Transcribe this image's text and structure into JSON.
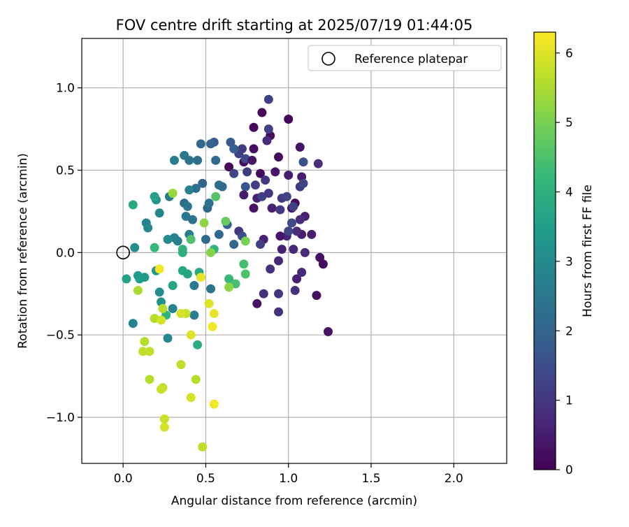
{
  "chart_data": {
    "type": "scatter",
    "title": "FOV centre drift starting at 2025/07/19 01:44:05",
    "xlabel": "Angular distance from reference (arcmin)",
    "ylabel": "Rotation from reference (arcmin)",
    "xlim": [
      -0.25,
      2.32
    ],
    "ylim": [
      -1.28,
      1.3
    ],
    "xticks": [
      0.0,
      0.5,
      1.0,
      1.5,
      2.0
    ],
    "xtick_labels": [
      "0.0",
      "0.5",
      "1.0",
      "1.5",
      "2.0"
    ],
    "yticks": [
      -1.0,
      -0.5,
      0.0,
      0.5,
      1.0
    ],
    "ytick_labels": [
      "−1.0",
      "−0.5",
      "0.0",
      "0.5",
      "1.0"
    ],
    "grid": true,
    "legend": {
      "placement": "upper right",
      "entries": [
        {
          "label": "Reference platepar",
          "marker": "open-circle"
        }
      ]
    },
    "reference_point": {
      "x": 0.0,
      "y": 0.0
    },
    "colorbar": {
      "label": "Hours from first FF file",
      "colormap": "viridis",
      "range": [
        0,
        6.3
      ],
      "ticks": [
        0,
        1,
        2,
        3,
        4,
        5,
        6
      ],
      "tick_labels": [
        "0",
        "1",
        "2",
        "3",
        "4",
        "5",
        "6"
      ]
    },
    "colormap_stops": [
      "#440154",
      "#482878",
      "#3e4a89",
      "#31688e",
      "#26828e",
      "#1f9e89",
      "#35b779",
      "#6ece58",
      "#b5de2b",
      "#fde725"
    ],
    "points": [
      {
        "x": 1.0,
        "y": 0.81,
        "t": 0.05
      },
      {
        "x": 0.84,
        "y": 0.85,
        "t": 0.1
      },
      {
        "x": 0.79,
        "y": 0.76,
        "t": 0.15
      },
      {
        "x": 0.89,
        "y": 0.71,
        "t": 0.2
      },
      {
        "x": 0.94,
        "y": 0.58,
        "t": 0.2
      },
      {
        "x": 1.07,
        "y": 0.64,
        "t": 0.3
      },
      {
        "x": 0.79,
        "y": 0.63,
        "t": 0.25
      },
      {
        "x": 0.64,
        "y": 0.52,
        "t": 0.1
      },
      {
        "x": 0.73,
        "y": 0.55,
        "t": 0.2
      },
      {
        "x": 0.83,
        "y": 0.48,
        "t": 0.2
      },
      {
        "x": 0.92,
        "y": 0.49,
        "t": 0.4
      },
      {
        "x": 1.0,
        "y": 0.47,
        "t": 0.5
      },
      {
        "x": 1.08,
        "y": 0.46,
        "t": 0.5
      },
      {
        "x": 0.81,
        "y": 0.33,
        "t": 0.6
      },
      {
        "x": 0.79,
        "y": 0.27,
        "t": 0.3
      },
      {
        "x": 0.9,
        "y": 0.27,
        "t": 0.6
      },
      {
        "x": 1.02,
        "y": 0.27,
        "t": 0.4
      },
      {
        "x": 1.04,
        "y": 0.3,
        "t": 0.1
      },
      {
        "x": 1.1,
        "y": 0.22,
        "t": 0.6
      },
      {
        "x": 1.07,
        "y": 0.2,
        "t": 0.8
      },
      {
        "x": 0.99,
        "y": 0.1,
        "t": 0.7
      },
      {
        "x": 0.95,
        "y": 0.1,
        "t": 0.4
      },
      {
        "x": 1.08,
        "y": 0.11,
        "t": 0.5
      },
      {
        "x": 1.14,
        "y": 0.11,
        "t": 0.5
      },
      {
        "x": 0.96,
        "y": 0.02,
        "t": 0.6
      },
      {
        "x": 1.03,
        "y": 0.02,
        "t": 0.7
      },
      {
        "x": 1.1,
        "y": 0.0,
        "t": 0.8
      },
      {
        "x": 0.94,
        "y": -0.05,
        "t": 0.7
      },
      {
        "x": 0.89,
        "y": -0.1,
        "t": 0.9
      },
      {
        "x": 1.05,
        "y": -0.16,
        "t": 0.6
      },
      {
        "x": 1.08,
        "y": -0.12,
        "t": 0.7
      },
      {
        "x": 1.19,
        "y": -0.03,
        "t": 0.3
      },
      {
        "x": 1.21,
        "y": -0.07,
        "t": 0.2
      },
      {
        "x": 1.17,
        "y": -0.26,
        "t": 0.3
      },
      {
        "x": 1.04,
        "y": -0.23,
        "t": 0.9
      },
      {
        "x": 0.85,
        "y": -0.25,
        "t": 0.9
      },
      {
        "x": 0.81,
        "y": -0.31,
        "t": 0.3
      },
      {
        "x": 0.94,
        "y": -0.25,
        "t": 1.0
      },
      {
        "x": 0.94,
        "y": -0.36,
        "t": 0.9
      },
      {
        "x": 1.24,
        "y": -0.48,
        "t": 0.3
      },
      {
        "x": 0.88,
        "y": 0.93,
        "t": 1.2
      },
      {
        "x": 0.88,
        "y": 0.75,
        "t": 1.2
      },
      {
        "x": 0.87,
        "y": 0.68,
        "t": 0.8
      },
      {
        "x": 0.72,
        "y": 0.63,
        "t": 1.1
      },
      {
        "x": 0.7,
        "y": 0.6,
        "t": 1.2
      },
      {
        "x": 0.74,
        "y": 0.57,
        "t": 1.4
      },
      {
        "x": 0.78,
        "y": 0.56,
        "t": 0.4
      },
      {
        "x": 0.75,
        "y": 0.49,
        "t": 1.1
      },
      {
        "x": 0.67,
        "y": 0.48,
        "t": 1.3
      },
      {
        "x": 0.86,
        "y": 0.44,
        "t": 1.0
      },
      {
        "x": 0.8,
        "y": 0.41,
        "t": 1.2
      },
      {
        "x": 0.74,
        "y": 0.4,
        "t": 1.7
      },
      {
        "x": 0.84,
        "y": 0.34,
        "t": 1.2
      },
      {
        "x": 0.88,
        "y": 0.36,
        "t": 1.0
      },
      {
        "x": 0.96,
        "y": 0.33,
        "t": 1.1
      },
      {
        "x": 0.99,
        "y": 0.34,
        "t": 1.3
      },
      {
        "x": 1.07,
        "y": 0.4,
        "t": 1.1
      },
      {
        "x": 1.09,
        "y": 0.42,
        "t": 1.3
      },
      {
        "x": 1.09,
        "y": 0.55,
        "t": 1.6
      },
      {
        "x": 1.18,
        "y": 0.54,
        "t": 0.8
      },
      {
        "x": 0.95,
        "y": 0.26,
        "t": 1.1
      },
      {
        "x": 1.03,
        "y": 0.28,
        "t": 1.2
      },
      {
        "x": 1.02,
        "y": 0.18,
        "t": 1.4
      },
      {
        "x": 1.05,
        "y": 0.13,
        "t": 0.8
      },
      {
        "x": 1.0,
        "y": 0.13,
        "t": 1.3
      },
      {
        "x": 0.7,
        "y": 0.13,
        "t": 1.0
      },
      {
        "x": 0.72,
        "y": 0.1,
        "t": 1.5
      },
      {
        "x": 0.85,
        "y": 0.08,
        "t": 0.6
      },
      {
        "x": 0.83,
        "y": 0.05,
        "t": 1.2
      },
      {
        "x": 0.73,
        "y": 0.35,
        "t": 0.5
      },
      {
        "x": 0.55,
        "y": 0.67,
        "t": 1.9
      },
      {
        "x": 0.47,
        "y": 0.66,
        "t": 2.1
      },
      {
        "x": 0.53,
        "y": 0.66,
        "t": 2.0
      },
      {
        "x": 0.65,
        "y": 0.67,
        "t": 1.8
      },
      {
        "x": 0.67,
        "y": 0.63,
        "t": 1.9
      },
      {
        "x": 0.56,
        "y": 0.56,
        "t": 2.2
      },
      {
        "x": 0.37,
        "y": 0.59,
        "t": 2.5
      },
      {
        "x": 0.4,
        "y": 0.56,
        "t": 2.4
      },
      {
        "x": 0.45,
        "y": 0.56,
        "t": 2.3
      },
      {
        "x": 0.31,
        "y": 0.56,
        "t": 2.7
      },
      {
        "x": 0.48,
        "y": 0.42,
        "t": 2.0
      },
      {
        "x": 0.44,
        "y": 0.39,
        "t": 2.3
      },
      {
        "x": 0.4,
        "y": 0.38,
        "t": 2.8
      },
      {
        "x": 0.37,
        "y": 0.3,
        "t": 2.2
      },
      {
        "x": 0.39,
        "y": 0.28,
        "t": 2.5
      },
      {
        "x": 0.51,
        "y": 0.27,
        "t": 2.1
      },
      {
        "x": 0.52,
        "y": 0.3,
        "t": 2.4
      },
      {
        "x": 0.58,
        "y": 0.41,
        "t": 2.3
      },
      {
        "x": 0.6,
        "y": 0.4,
        "t": 2.2
      },
      {
        "x": 0.38,
        "y": 0.22,
        "t": 2.5
      },
      {
        "x": 0.42,
        "y": 0.2,
        "t": 2.4
      },
      {
        "x": 0.5,
        "y": 0.08,
        "t": 2.2
      },
      {
        "x": 0.58,
        "y": 0.11,
        "t": 2.1
      },
      {
        "x": 0.63,
        "y": 0.17,
        "t": 2.0
      },
      {
        "x": 0.67,
        "y": 0.05,
        "t": 2.1
      },
      {
        "x": 0.4,
        "y": 0.11,
        "t": 2.6
      },
      {
        "x": 0.31,
        "y": 0.09,
        "t": 2.8
      },
      {
        "x": 0.33,
        "y": 0.07,
        "t": 2.7
      },
      {
        "x": 0.28,
        "y": 0.34,
        "t": 2.6
      },
      {
        "x": 0.22,
        "y": 0.24,
        "t": 2.9
      },
      {
        "x": 0.14,
        "y": 0.18,
        "t": 2.8
      },
      {
        "x": 0.15,
        "y": 0.15,
        "t": 2.9
      },
      {
        "x": 0.2,
        "y": 0.32,
        "t": 3.2
      },
      {
        "x": 0.27,
        "y": 0.08,
        "t": 3.0
      },
      {
        "x": 0.07,
        "y": 0.03,
        "t": 3.1
      },
      {
        "x": 0.06,
        "y": -0.43,
        "t": 2.8
      },
      {
        "x": 0.27,
        "y": -0.52,
        "t": 3.0
      },
      {
        "x": 0.43,
        "y": -0.38,
        "t": 2.7
      },
      {
        "x": 0.3,
        "y": -0.34,
        "t": 2.8
      },
      {
        "x": 0.43,
        "y": -0.2,
        "t": 2.6
      },
      {
        "x": 0.53,
        "y": -0.22,
        "t": 2.4
      },
      {
        "x": 0.23,
        "y": -0.3,
        "t": 3.2
      },
      {
        "x": 0.22,
        "y": -0.24,
        "t": 3.1
      },
      {
        "x": 0.2,
        "y": -0.11,
        "t": 3.3
      },
      {
        "x": 0.09,
        "y": -0.14,
        "t": 3.4
      },
      {
        "x": 0.1,
        "y": -0.16,
        "t": 3.5
      },
      {
        "x": 0.13,
        "y": -0.15,
        "t": 3.4
      },
      {
        "x": 0.02,
        "y": -0.16,
        "t": 3.6
      },
      {
        "x": 0.06,
        "y": 0.29,
        "t": 3.8
      },
      {
        "x": 0.19,
        "y": 0.34,
        "t": 3.6
      },
      {
        "x": 0.36,
        "y": -0.11,
        "t": 3.8
      },
      {
        "x": 0.3,
        "y": -0.2,
        "t": 3.7
      },
      {
        "x": 0.39,
        "y": -0.13,
        "t": 3.7
      },
      {
        "x": 0.46,
        "y": -0.12,
        "t": 3.8
      },
      {
        "x": 0.45,
        "y": -0.56,
        "t": 3.9
      },
      {
        "x": 0.26,
        "y": -0.38,
        "t": 4.1
      },
      {
        "x": 0.36,
        "y": 0.02,
        "t": 4.1
      },
      {
        "x": 0.36,
        "y": 0.0,
        "t": 4.0
      },
      {
        "x": 0.19,
        "y": 0.03,
        "t": 4.2
      },
      {
        "x": 0.55,
        "y": 0.02,
        "t": 4.1
      },
      {
        "x": 0.64,
        "y": -0.16,
        "t": 4.2
      },
      {
        "x": 0.68,
        "y": -0.19,
        "t": 4.4
      },
      {
        "x": 0.73,
        "y": -0.07,
        "t": 4.4
      },
      {
        "x": 0.74,
        "y": -0.13,
        "t": 4.5
      },
      {
        "x": 0.56,
        "y": 0.34,
        "t": 4.6
      },
      {
        "x": 0.41,
        "y": 0.08,
        "t": 4.5
      },
      {
        "x": 0.62,
        "y": 0.19,
        "t": 4.8
      },
      {
        "x": 0.74,
        "y": 0.07,
        "t": 5.0
      },
      {
        "x": 0.49,
        "y": 0.18,
        "t": 5.2
      },
      {
        "x": 0.3,
        "y": 0.36,
        "t": 5.3
      },
      {
        "x": 0.64,
        "y": -0.21,
        "t": 5.2
      },
      {
        "x": 0.53,
        "y": 0.0,
        "t": 5.1
      },
      {
        "x": 0.09,
        "y": -0.23,
        "t": 5.5
      },
      {
        "x": 0.19,
        "y": -0.4,
        "t": 5.6
      },
      {
        "x": 0.24,
        "y": -0.34,
        "t": 5.6
      },
      {
        "x": 0.23,
        "y": -0.41,
        "t": 5.9
      },
      {
        "x": 0.13,
        "y": -0.54,
        "t": 5.6
      },
      {
        "x": 0.12,
        "y": -0.6,
        "t": 5.7
      },
      {
        "x": 0.16,
        "y": -0.6,
        "t": 5.7
      },
      {
        "x": 0.16,
        "y": -0.77,
        "t": 5.6
      },
      {
        "x": 0.24,
        "y": -0.82,
        "t": 5.7
      },
      {
        "x": 0.23,
        "y": -0.83,
        "t": 5.8
      },
      {
        "x": 0.35,
        "y": -0.68,
        "t": 5.7
      },
      {
        "x": 0.44,
        "y": -0.77,
        "t": 5.6
      },
      {
        "x": 0.41,
        "y": -0.88,
        "t": 5.9
      },
      {
        "x": 0.25,
        "y": -1.01,
        "t": 5.8
      },
      {
        "x": 0.25,
        "y": -1.06,
        "t": 5.9
      },
      {
        "x": 0.48,
        "y": -1.18,
        "t": 5.7
      },
      {
        "x": 0.55,
        "y": -0.92,
        "t": 6.2
      },
      {
        "x": 0.38,
        "y": -0.37,
        "t": 5.8
      },
      {
        "x": 0.35,
        "y": -0.37,
        "t": 5.9
      },
      {
        "x": 0.41,
        "y": -0.5,
        "t": 6.0
      },
      {
        "x": 0.52,
        "y": -0.31,
        "t": 6.0
      },
      {
        "x": 0.55,
        "y": -0.37,
        "t": 6.1
      },
      {
        "x": 0.54,
        "y": -0.45,
        "t": 6.2
      },
      {
        "x": 0.47,
        "y": -0.15,
        "t": 6.1
      },
      {
        "x": 0.22,
        "y": -0.1,
        "t": 6.2
      }
    ]
  }
}
